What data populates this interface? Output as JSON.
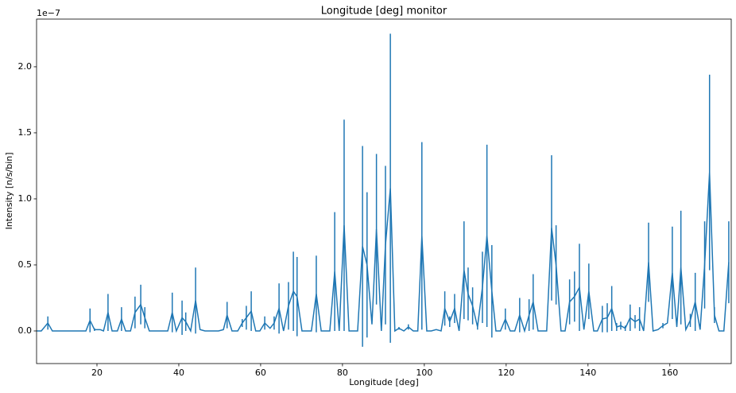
{
  "chart_data": {
    "type": "errorbar_line",
    "title": "Longitude [deg] monitor",
    "x_label": "Longitude [deg]",
    "y_label": "Intensity [n/s/bin]",
    "offset_text": "1e−7",
    "color": "#1f77b4",
    "xlim": [
      5.24,
      175
    ],
    "ylim": [
      -0.247,
      2.361
    ],
    "xticks": [
      20,
      40,
      60,
      80,
      100,
      120,
      140,
      160
    ],
    "yticks": [
      {
        "value": 0,
        "label": "0.0"
      },
      0.5,
      {
        "value": 1,
        "label": "1.0"
      },
      1.5,
      {
        "value": 2,
        "label": "2.0"
      }
    ],
    "x": [
      5.3,
      6.4,
      8.0,
      9.1,
      10.3,
      11.5,
      12.6,
      13.8,
      15.0,
      16.1,
      17.3,
      18.3,
      19.4,
      20.8,
      21.6,
      22.7,
      23.7,
      25.0,
      26.0,
      27.0,
      28.2,
      29.3,
      30.7,
      31.7,
      32.8,
      34.0,
      35.1,
      36.3,
      37.3,
      38.4,
      39.4,
      40.8,
      41.7,
      42.9,
      44.1,
      45.2,
      46.4,
      47.6,
      48.7,
      49.7,
      50.9,
      51.8,
      53.0,
      54.4,
      55.5,
      56.5,
      57.7,
      58.8,
      59.8,
      61.0,
      62.3,
      63.3,
      64.5,
      65.6,
      66.8,
      68.0,
      68.9,
      70.1,
      71.3,
      72.4,
      73.6,
      74.8,
      75.9,
      76.9,
      78.1,
      79.2,
      80.4,
      81.6,
      82.5,
      83.7,
      84.9,
      86.0,
      87.2,
      88.3,
      89.5,
      90.5,
      91.7,
      92.8,
      93.8,
      95.0,
      96.1,
      97.3,
      98.4,
      99.4,
      100.6,
      101.7,
      102.9,
      104.1,
      105.0,
      106.2,
      107.4,
      108.5,
      109.7,
      110.7,
      111.8,
      113.0,
      114.2,
      115.3,
      116.5,
      117.5,
      118.6,
      119.8,
      121.0,
      122.1,
      123.3,
      124.5,
      125.6,
      126.6,
      127.8,
      128.9,
      129.9,
      131.1,
      132.2,
      133.4,
      134.4,
      135.5,
      136.7,
      137.9,
      139.0,
      140.2,
      141.4,
      142.3,
      143.5,
      144.7,
      145.8,
      147.0,
      148.0,
      149.1,
      150.3,
      151.5,
      152.6,
      153.6,
      154.8,
      155.9,
      157.1,
      158.3,
      159.4,
      160.6,
      161.7,
      162.7,
      163.9,
      165.0,
      166.2,
      167.4,
      168.5,
      169.7,
      170.9,
      172.0,
      173.2,
      174.4
    ],
    "values": [
      0,
      0,
      0.06,
      0,
      0,
      0,
      0,
      0,
      0,
      0,
      0,
      0.08,
      0.01,
      0.01,
      0,
      0.14,
      0,
      0,
      0.09,
      0,
      0,
      0.14,
      0.2,
      0.1,
      0,
      0,
      0,
      0,
      0,
      0.14,
      0,
      0.1,
      0.07,
      0,
      0.23,
      0.01,
      0,
      0,
      0,
      0,
      0.01,
      0.12,
      0,
      0,
      0.06,
      0.1,
      0.15,
      0,
      0,
      0.06,
      0.02,
      0.06,
      0.17,
      0,
      0.19,
      0.3,
      0.26,
      0,
      0,
      0,
      0.28,
      0,
      0,
      0,
      0.45,
      0,
      0.8,
      0,
      0,
      0,
      0.64,
      0.5,
      0.05,
      0.77,
      0,
      0.65,
      1.08,
      0,
      0.02,
      0,
      0.03,
      0,
      0,
      0.72,
      0,
      0,
      0.01,
      0,
      0.17,
      0.07,
      0.17,
      0,
      0.46,
      0.28,
      0.19,
      0.03,
      0.33,
      0.72,
      0.3,
      0,
      0,
      0.09,
      0,
      0,
      0.12,
      0,
      0.12,
      0.22,
      0,
      0,
      0,
      0.78,
      0.5,
      0,
      0,
      0.22,
      0.26,
      0.33,
      0.01,
      0.3,
      0,
      0,
      0.09,
      0.1,
      0.17,
      0.03,
      0.04,
      0.02,
      0.1,
      0.07,
      0.09,
      0,
      0.52,
      0,
      0.01,
      0.04,
      0.06,
      0.44,
      0.03,
      0.48,
      0.01,
      0.08,
      0.22,
      0.01,
      0.5,
      1.2,
      0.12,
      0,
      0,
      0.52
    ],
    "errors": [
      0,
      0,
      0.05,
      0,
      0,
      0,
      0,
      0,
      0,
      0,
      0,
      0.09,
      0.01,
      0,
      0,
      0.14,
      0,
      0,
      0.09,
      0,
      0,
      0.12,
      0.15,
      0.08,
      0,
      0,
      0,
      0,
      0,
      0.15,
      0,
      0.13,
      0.07,
      0,
      0.25,
      0,
      0,
      0,
      0,
      0,
      0,
      0.1,
      0,
      0,
      0.03,
      0.09,
      0.15,
      0,
      0,
      0.05,
      0,
      0.05,
      0.19,
      0,
      0.18,
      0.3,
      0.3,
      0,
      0,
      0,
      0.29,
      0,
      0,
      0,
      0.45,
      0,
      0.8,
      0,
      0,
      0,
      0.76,
      0.55,
      0,
      0.57,
      0,
      0.6,
      1.17,
      0,
      0.01,
      0,
      0.02,
      0,
      0,
      0.71,
      0,
      0,
      0,
      0,
      0.13,
      0.04,
      0.11,
      0,
      0.37,
      0.2,
      0.14,
      0.02,
      0.27,
      0.69,
      0.35,
      0,
      0,
      0.08,
      0,
      0,
      0.13,
      0,
      0.12,
      0.21,
      0,
      0,
      0,
      0.55,
      0.3,
      0,
      0,
      0.17,
      0.19,
      0.33,
      0,
      0.21,
      0,
      0,
      0.1,
      0.11,
      0.17,
      0.03,
      0.03,
      0.02,
      0.1,
      0.05,
      0.09,
      0,
      0.3,
      0,
      0,
      0.02,
      0,
      0.35,
      0,
      0.43,
      0,
      0.05,
      0.22,
      0,
      0.33,
      0.74,
      0.06,
      0,
      0,
      0.31
    ]
  }
}
